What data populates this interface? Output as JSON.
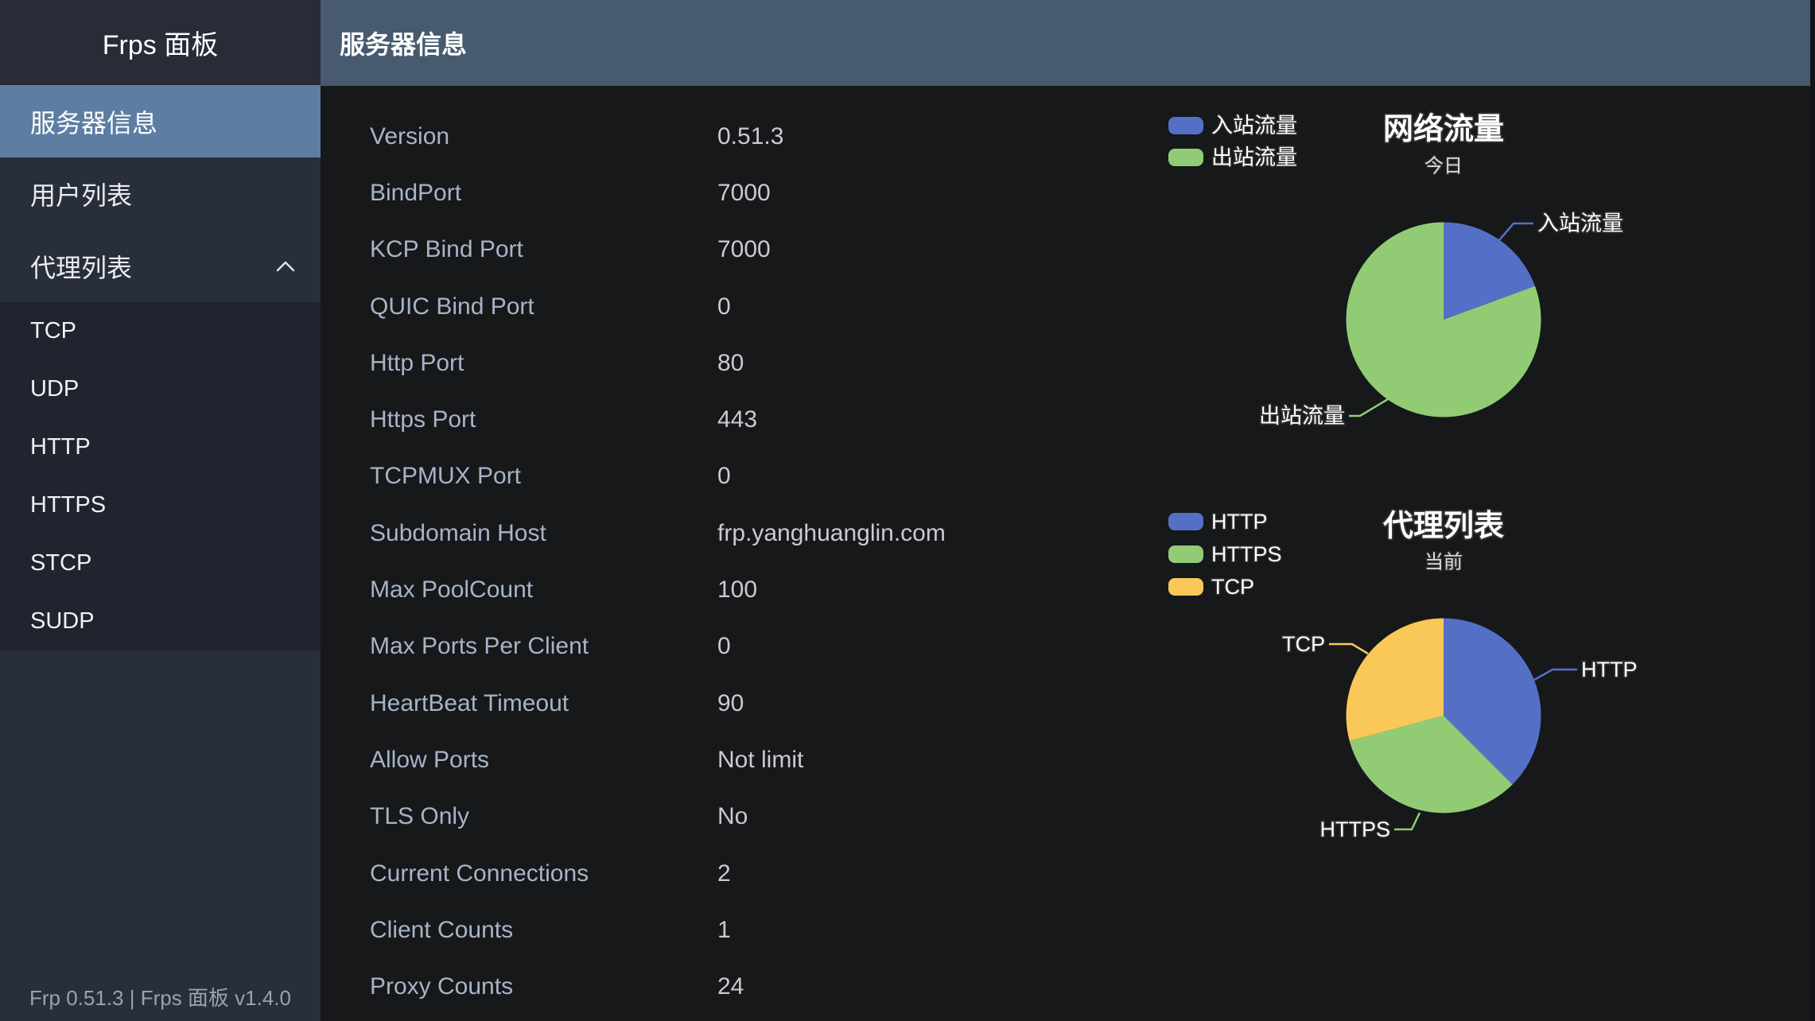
{
  "app": {
    "sidebar_title": "Frps 面板",
    "header_title": "服务器信息",
    "footer": "Frp 0.51.3 | Frps 面板 v1.4.0"
  },
  "sidebar": {
    "items": [
      {
        "label": "服务器信息",
        "active": true
      },
      {
        "label": "用户列表",
        "active": false
      },
      {
        "label": "代理列表",
        "active": false,
        "expanded": true
      }
    ],
    "subitems": [
      {
        "label": "TCP"
      },
      {
        "label": "UDP"
      },
      {
        "label": "HTTP"
      },
      {
        "label": "HTTPS"
      },
      {
        "label": "STCP"
      },
      {
        "label": "SUDP"
      }
    ]
  },
  "server_info": {
    "rows": [
      {
        "label": "Version",
        "value": "0.51.3"
      },
      {
        "label": "BindPort",
        "value": "7000"
      },
      {
        "label": "KCP Bind Port",
        "value": "7000"
      },
      {
        "label": "QUIC Bind Port",
        "value": "0"
      },
      {
        "label": "Http Port",
        "value": "80"
      },
      {
        "label": "Https Port",
        "value": "443"
      },
      {
        "label": "TCPMUX Port",
        "value": "0"
      },
      {
        "label": "Subdomain Host",
        "value": "frp.yanghuanglin.com"
      },
      {
        "label": "Max PoolCount",
        "value": "100"
      },
      {
        "label": "Max Ports Per Client",
        "value": "0"
      },
      {
        "label": "HeartBeat Timeout",
        "value": "90"
      },
      {
        "label": "Allow Ports",
        "value": "Not limit"
      },
      {
        "label": "TLS Only",
        "value": "No"
      },
      {
        "label": "Current Connections",
        "value": "2"
      },
      {
        "label": "Client Counts",
        "value": "1"
      },
      {
        "label": "Proxy Counts",
        "value": "24"
      }
    ]
  },
  "chart_data": [
    {
      "type": "pie",
      "title": "网络流量",
      "subtitle": "今日",
      "legend_position": "left",
      "value_unit": "percent of total traffic (estimated from arc angles)",
      "series": [
        {
          "name": "入站流量",
          "value": 19.4,
          "color": "#5470c6"
        },
        {
          "name": "出站流量",
          "value": 80.6,
          "color": "#91cc75"
        }
      ]
    },
    {
      "type": "pie",
      "title": "代理列表",
      "subtitle": "当前",
      "legend_position": "left",
      "value_unit": "proxy count (total = 24)",
      "series": [
        {
          "name": "HTTP",
          "value": 9,
          "color": "#5470c6"
        },
        {
          "name": "HTTPS",
          "value": 8,
          "color": "#91cc75"
        },
        {
          "name": "TCP",
          "value": 7,
          "color": "#fac858"
        }
      ]
    }
  ],
  "colors": {
    "sidebar_bg": "#292f3a",
    "submenu_bg": "#1f242e",
    "selected_item_bg": "#5e7da2",
    "header_bg": "#475a70",
    "content_bg": "#17181a",
    "info_label": "#a6b4c8",
    "info_value": "#c9cbcf",
    "palette": [
      "#5470c6",
      "#91cc75",
      "#fac858"
    ]
  }
}
